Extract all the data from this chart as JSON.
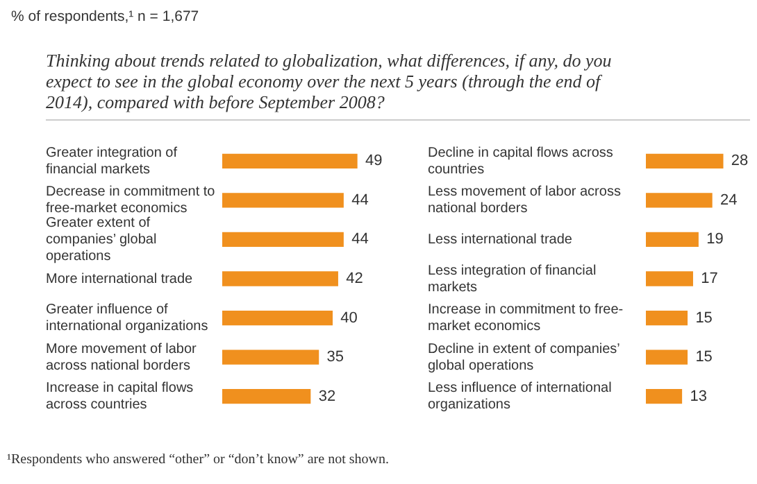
{
  "chart_data": [
    {
      "type": "bar",
      "orientation": "horizontal",
      "subtitle": "% of respondents,¹ n = 1,677",
      "title": "Thinking about trends related to globalization, what differences, if any, do you expect to see in the global economy over the next 5 years (through the end of 2014), compared with before September 2008?",
      "categories": [
        "Greater integration of financial markets",
        "Decrease in commitment to free-market economics",
        "Greater extent of companies’ global operations",
        "More international trade",
        "Greater influence of international organizations",
        "More movement of labor across national borders",
        "Increase in capital flows across countries"
      ],
      "values": [
        49,
        44,
        44,
        42,
        40,
        35,
        32
      ],
      "color": "#f0901e",
      "data_labels": true,
      "tick_labels": "y",
      "annotations": [
        "¹Respondents who answered “other” or “don’t know” are not shown."
      ]
    },
    {
      "type": "bar",
      "orientation": "horizontal",
      "categories": [
        "Decline in capital flows across countries",
        "Less movement of labor across national borders",
        "Less international trade",
        "Less integration of financial markets",
        "Increase in commitment to free-market economics",
        "Decline in extent of companies’ global operations",
        "Less influence of international organizations"
      ],
      "values": [
        28,
        24,
        19,
        17,
        15,
        15,
        13
      ],
      "color": "#f0901e",
      "data_labels": true,
      "tick_labels": "y"
    }
  ]
}
